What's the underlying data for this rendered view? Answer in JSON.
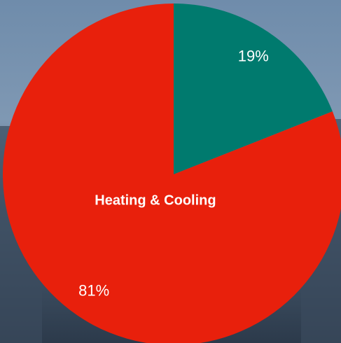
{
  "chart_data": {
    "type": "pie",
    "categories": [
      null,
      "Heating & Cooling"
    ],
    "values": [
      19,
      81
    ],
    "value_labels": [
      "19%",
      "81%"
    ],
    "colors": [
      "#007a6e",
      "#e8200c"
    ]
  }
}
